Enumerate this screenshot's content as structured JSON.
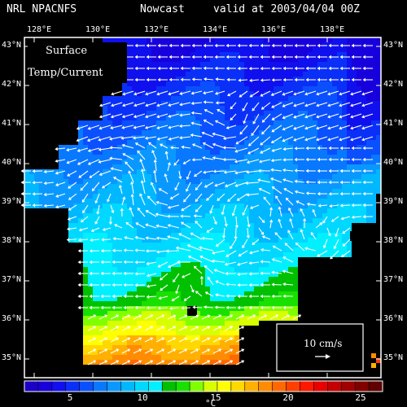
{
  "header": {
    "source": "NRL NPACNFS",
    "product": "Nowcast",
    "valid": "valid at 2003/04/04 00Z"
  },
  "panel_label": {
    "line1": "Surface",
    "line2": "Temp/Current"
  },
  "map": {
    "lon_range": [
      127.2,
      140.0
    ],
    "lat_range": [
      34.6,
      43.3
    ],
    "lon_ticks": [
      "128°E",
      "130°E",
      "132°E",
      "134°E",
      "136°E",
      "138°E"
    ],
    "lat_ticks": [
      "35°N",
      "36°N",
      "37°N",
      "38°N",
      "39°N",
      "40°N",
      "41°N",
      "42°N",
      "43°N"
    ]
  },
  "scale_vector": {
    "label": "10 cm/s"
  },
  "colorbar": {
    "unit": "°C",
    "range": [
      1,
      27
    ],
    "tick_labels": [
      "5",
      "10",
      "15",
      "20",
      "25"
    ],
    "colors": [
      "#1c00c8",
      "#1800dc",
      "#1010ee",
      "#0a30f8",
      "#0a50ff",
      "#0878ff",
      "#0a98ff",
      "#00b8ff",
      "#00d8ff",
      "#00f0ff",
      "#00c000",
      "#18e000",
      "#80ff00",
      "#d8ff00",
      "#ffff00",
      "#ffd800",
      "#ffb000",
      "#ff8c00",
      "#ff6800",
      "#ff4000",
      "#ff1800",
      "#e80000",
      "#c40000",
      "#a00000",
      "#800000",
      "#600000"
    ]
  },
  "colors": {
    "background": "#000000",
    "land": "#000000",
    "vectors": "#ffffff",
    "text": "#ffffff"
  }
}
